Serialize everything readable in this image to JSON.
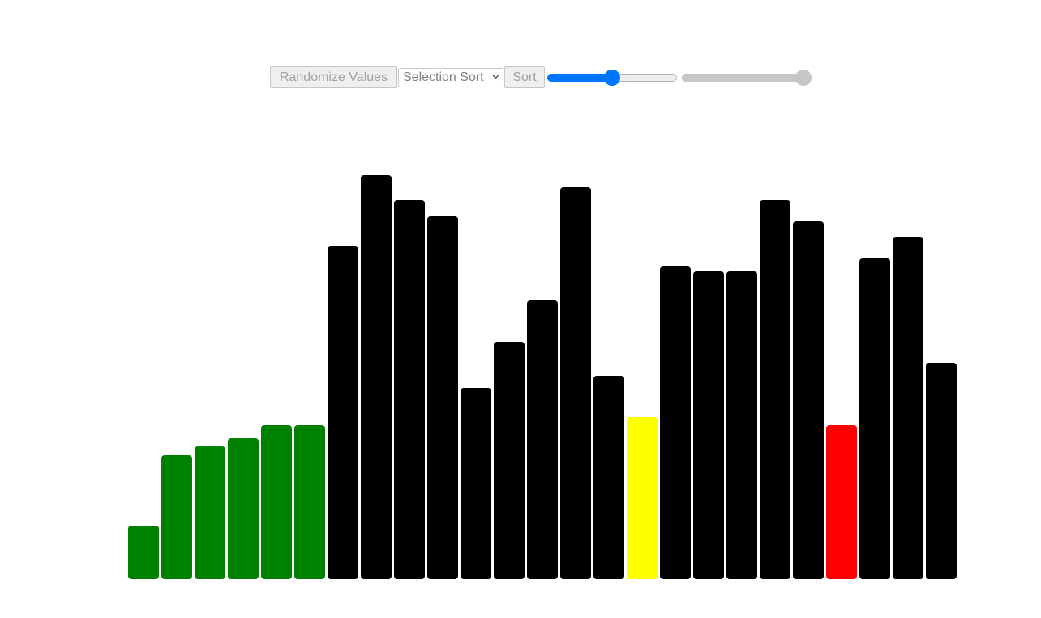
{
  "controls": {
    "randomize_label": "Randomize Values",
    "algorithm_selected": "Selection Sort",
    "sort_label": "Sort",
    "speed_slider": {
      "value_fraction": 0.5
    },
    "size_slider": {
      "value_fraction": 1.0
    }
  },
  "colors": {
    "sorted": "#008000",
    "unsorted": "#000000",
    "current_min": "#ffff00",
    "comparing": "#ff0000",
    "slider_active": "#0075ff",
    "disabled": "#c6c6c6"
  },
  "bars": {
    "max_value": 500,
    "values": [
      66,
      153,
      164,
      174,
      190,
      190,
      411,
      499,
      468,
      448,
      236,
      293,
      344,
      484,
      251,
      200,
      386,
      380,
      380,
      468,
      442,
      190,
      396,
      422,
      267
    ],
    "states": [
      "sorted",
      "sorted",
      "sorted",
      "sorted",
      "sorted",
      "sorted",
      "unsorted",
      "unsorted",
      "unsorted",
      "unsorted",
      "unsorted",
      "unsorted",
      "unsorted",
      "unsorted",
      "unsorted",
      "current_min",
      "unsorted",
      "unsorted",
      "unsorted",
      "unsorted",
      "unsorted",
      "comparing",
      "unsorted",
      "unsorted",
      "unsorted"
    ]
  }
}
